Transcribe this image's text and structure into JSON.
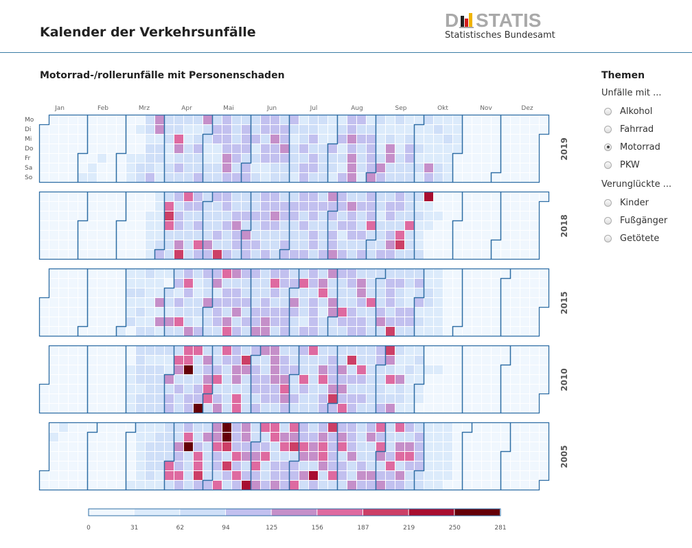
{
  "header": {
    "title": "Kalender der Verkehrsunfälle",
    "logo_word": "DESTATIS",
    "logo_sub": "Statistisches Bundesamt"
  },
  "sidebar": {
    "title": "Themen",
    "group1_label": "Unfälle mit ...",
    "group1_options": [
      {
        "label": "Alkohol",
        "checked": false
      },
      {
        "label": "Fahrrad",
        "checked": false
      },
      {
        "label": "Motorrad",
        "checked": true
      },
      {
        "label": "PKW",
        "checked": false
      }
    ],
    "group2_label": "Verunglückte ...",
    "group2_options": [
      {
        "label": "Kinder",
        "checked": false
      },
      {
        "label": "Fußgänger",
        "checked": false
      },
      {
        "label": "Getötete",
        "checked": false
      }
    ]
  },
  "chart_data": {
    "type": "heatmap",
    "title": "Motorrad-/rollerunfälle mit Personenschaden",
    "months": [
      "Jan",
      "Feb",
      "Mrz",
      "Apr",
      "Mai",
      "Jun",
      "Jul",
      "Aug",
      "Sep",
      "Okt",
      "Nov",
      "Dez"
    ],
    "weekdays": [
      "Mo",
      "Di",
      "Mi",
      "Do",
      "Fr",
      "Sa",
      "So"
    ],
    "years": [
      2019,
      2018,
      2015,
      2010,
      2005
    ],
    "legend": {
      "ticks": [
        0,
        31,
        62,
        94,
        125,
        156,
        187,
        219,
        250,
        281
      ],
      "colors": [
        "#f0f7fe",
        "#dcebfb",
        "#cfdff8",
        "#c2c0ef",
        "#c58fc9",
        "#de6aa0",
        "#cc3f66",
        "#a80e30",
        "#650008"
      ]
    },
    "bucket_note": "Each string is one month; characters are day-by-day bucket index 0-8 into legend colors",
    "values": {
      "2019": [
        "0000000000000000000000000000000",
        "0010000011000010000000000000",
        "0000000111010012222122234412211",
        "2221122225423221122222123223422",
        "2112223311223333443222332323332",
        "3322312123323311334332223343222",
        "3212221122323322323322112222111",
        "3221123121333434443232221123333",
        "4211124311244222111222112332211",
        "1121212111143121112211211111111",
        "000000000000000000000000000000",
        "0000000000000000000000000000000"
      ],
      "2018": [
        "0000000000000000000000000000000",
        "0000000000000000000000000000",
        "0000000000000000000011111111112",
        "3256522232332465322222332325322",
        "2222433222326332322322343322232",
        "4332232232333322333432222332232",
        "3233222333232233332332232222343",
        "3233433231232433322232232333352",
        "2222122232332343332256222252222",
        "2121112711100000100000000000000",
        "000000000000000000000000000000",
        "0000000000000000000000000000000"
      ],
      "2015": [
        "0000000000000000000000000000000",
        "0000000000000000000000000000",
        "1112112011212122111112111414110",
        "2214223132523532224211221332242",
        "2223413332523324542334233223232",
        "3222334222334435323323322333232",
        "2432225222133323333245212242244",
        "2232225323322333244323322252222",
        "2223422333236232233222113322325",
        "3121112211111111110000000000000",
        "000000000000000000000000000000",
        "0000000000000000000000000000000"
      ],
      "2010": [
        "0000000000000000000000000000000",
        "0000000000000000000000000000",
        "0011111222212221222222122222211",
        "4233254232255822335222338243453",
        "5222352345322222334425526422223",
        "2333234223332444433223345432232",
        "2232322532252222222245233233346",
        "3224343526232332253232222222233",
        "2222364251242114221112111112111",
        "1100010000001000000000000000000",
        "000000000000000000000000000000",
        "0000000000000000000000000000000"
      ],
      "2005": [
        "0001000001000000000000000000000",
        "0000000000000000000000000000",
        "0000011111111112222112222112222",
        "5522243353358222222355632422223",
        "3445332588626323335353443423722",
        "3453452352235522334245233354626",
        "3353354242234427334554226333352",
        "3452332333422422223433422243535",
        "4234222353352452433245322233331",
        "2211111111111111111111000000000",
        "000000000000000000000000000000",
        "0000000000000000000000000000000"
      ]
    }
  }
}
